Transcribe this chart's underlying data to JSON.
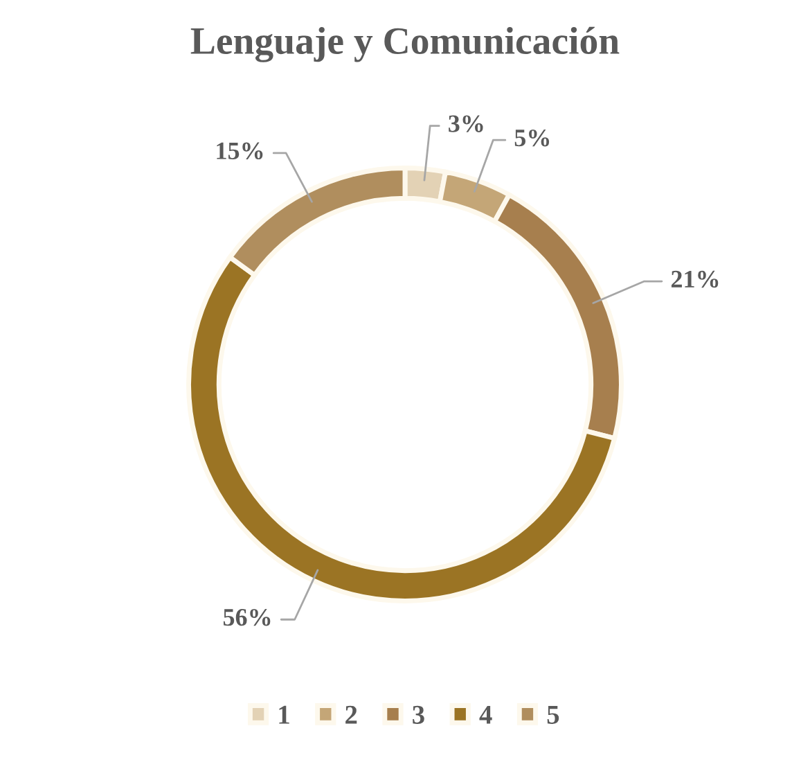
{
  "chart_data": {
    "type": "donut",
    "title": "Lenguaje y Comunicación",
    "categories": [
      "1",
      "2",
      "3",
      "4",
      "5"
    ],
    "values": [
      3,
      5,
      21,
      56,
      15
    ],
    "value_labels": [
      "3%",
      "5%",
      "21%",
      "56%",
      "15%"
    ],
    "colors": [
      "#e3d2b5",
      "#c4a677",
      "#a77f4e",
      "#9b7424",
      "#b08e5e"
    ],
    "legend": "bottom"
  }
}
